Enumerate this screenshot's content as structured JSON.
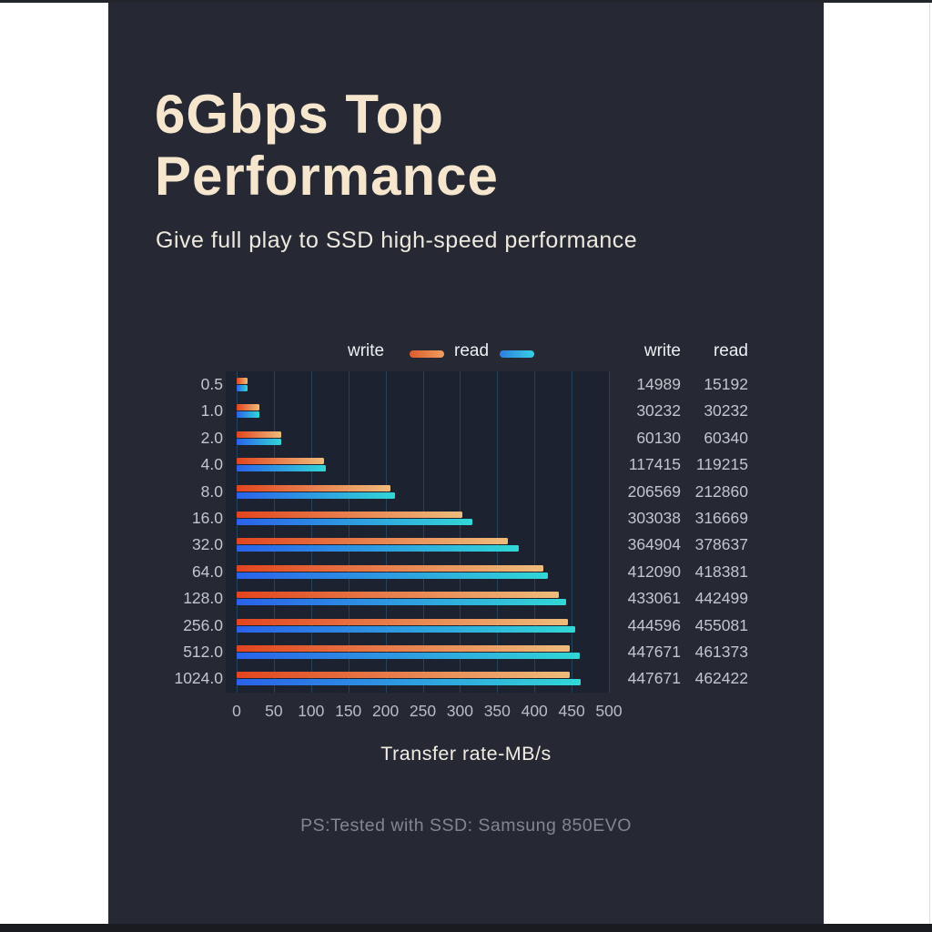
{
  "header": {
    "title_line1": "6Gbps Top",
    "title_line2": "Performance",
    "subtitle": "Give full play to SSD high-speed performance"
  },
  "footnote": "PS:Tested with SSD: Samsung 850EVO",
  "colors": {
    "panel_background": "#262933",
    "plot_background": "#1c2230",
    "gridline": "#24445c",
    "title_text": "#f5e6cd",
    "body_text": "#c2c5cc",
    "write_bar_gradient": [
      "#e2451f",
      "#eebc7b"
    ],
    "read_bar_gradient": [
      "#2a62ea",
      "#31d7d6"
    ],
    "write_legend_gradient": [
      "#dd5b2a",
      "#eda05e"
    ],
    "read_legend_gradient": [
      "#2d7fe2",
      "#36cfe3"
    ]
  },
  "chart_data": {
    "type": "bar",
    "orientation": "horizontal",
    "title": "",
    "xlabel": "Transfer rate-MB/s",
    "ylabel": "",
    "categories": [
      "0.5",
      "1.0",
      "2.0",
      "4.0",
      "8.0",
      "16.0",
      "32.0",
      "64.0",
      "128.0",
      "256.0",
      "512.0",
      "1024.0"
    ],
    "series": [
      {
        "name": "write",
        "values": [
          14989,
          30232,
          60130,
          117415,
          206569,
          303038,
          364904,
          412090,
          433061,
          444596,
          447671,
          447671
        ]
      },
      {
        "name": "read",
        "values": [
          15192,
          30232,
          60340,
          119215,
          212860,
          316669,
          378637,
          418381,
          442499,
          455081,
          461373,
          462422
        ]
      }
    ],
    "value_to_mbps_scale": 0.001,
    "x_ticks": [
      0,
      50,
      100,
      150,
      200,
      250,
      300,
      350,
      400,
      450,
      500
    ],
    "xlim": [
      0,
      500
    ],
    "grid": true,
    "legend_position": "top",
    "table_headers": [
      "write",
      "read"
    ]
  }
}
